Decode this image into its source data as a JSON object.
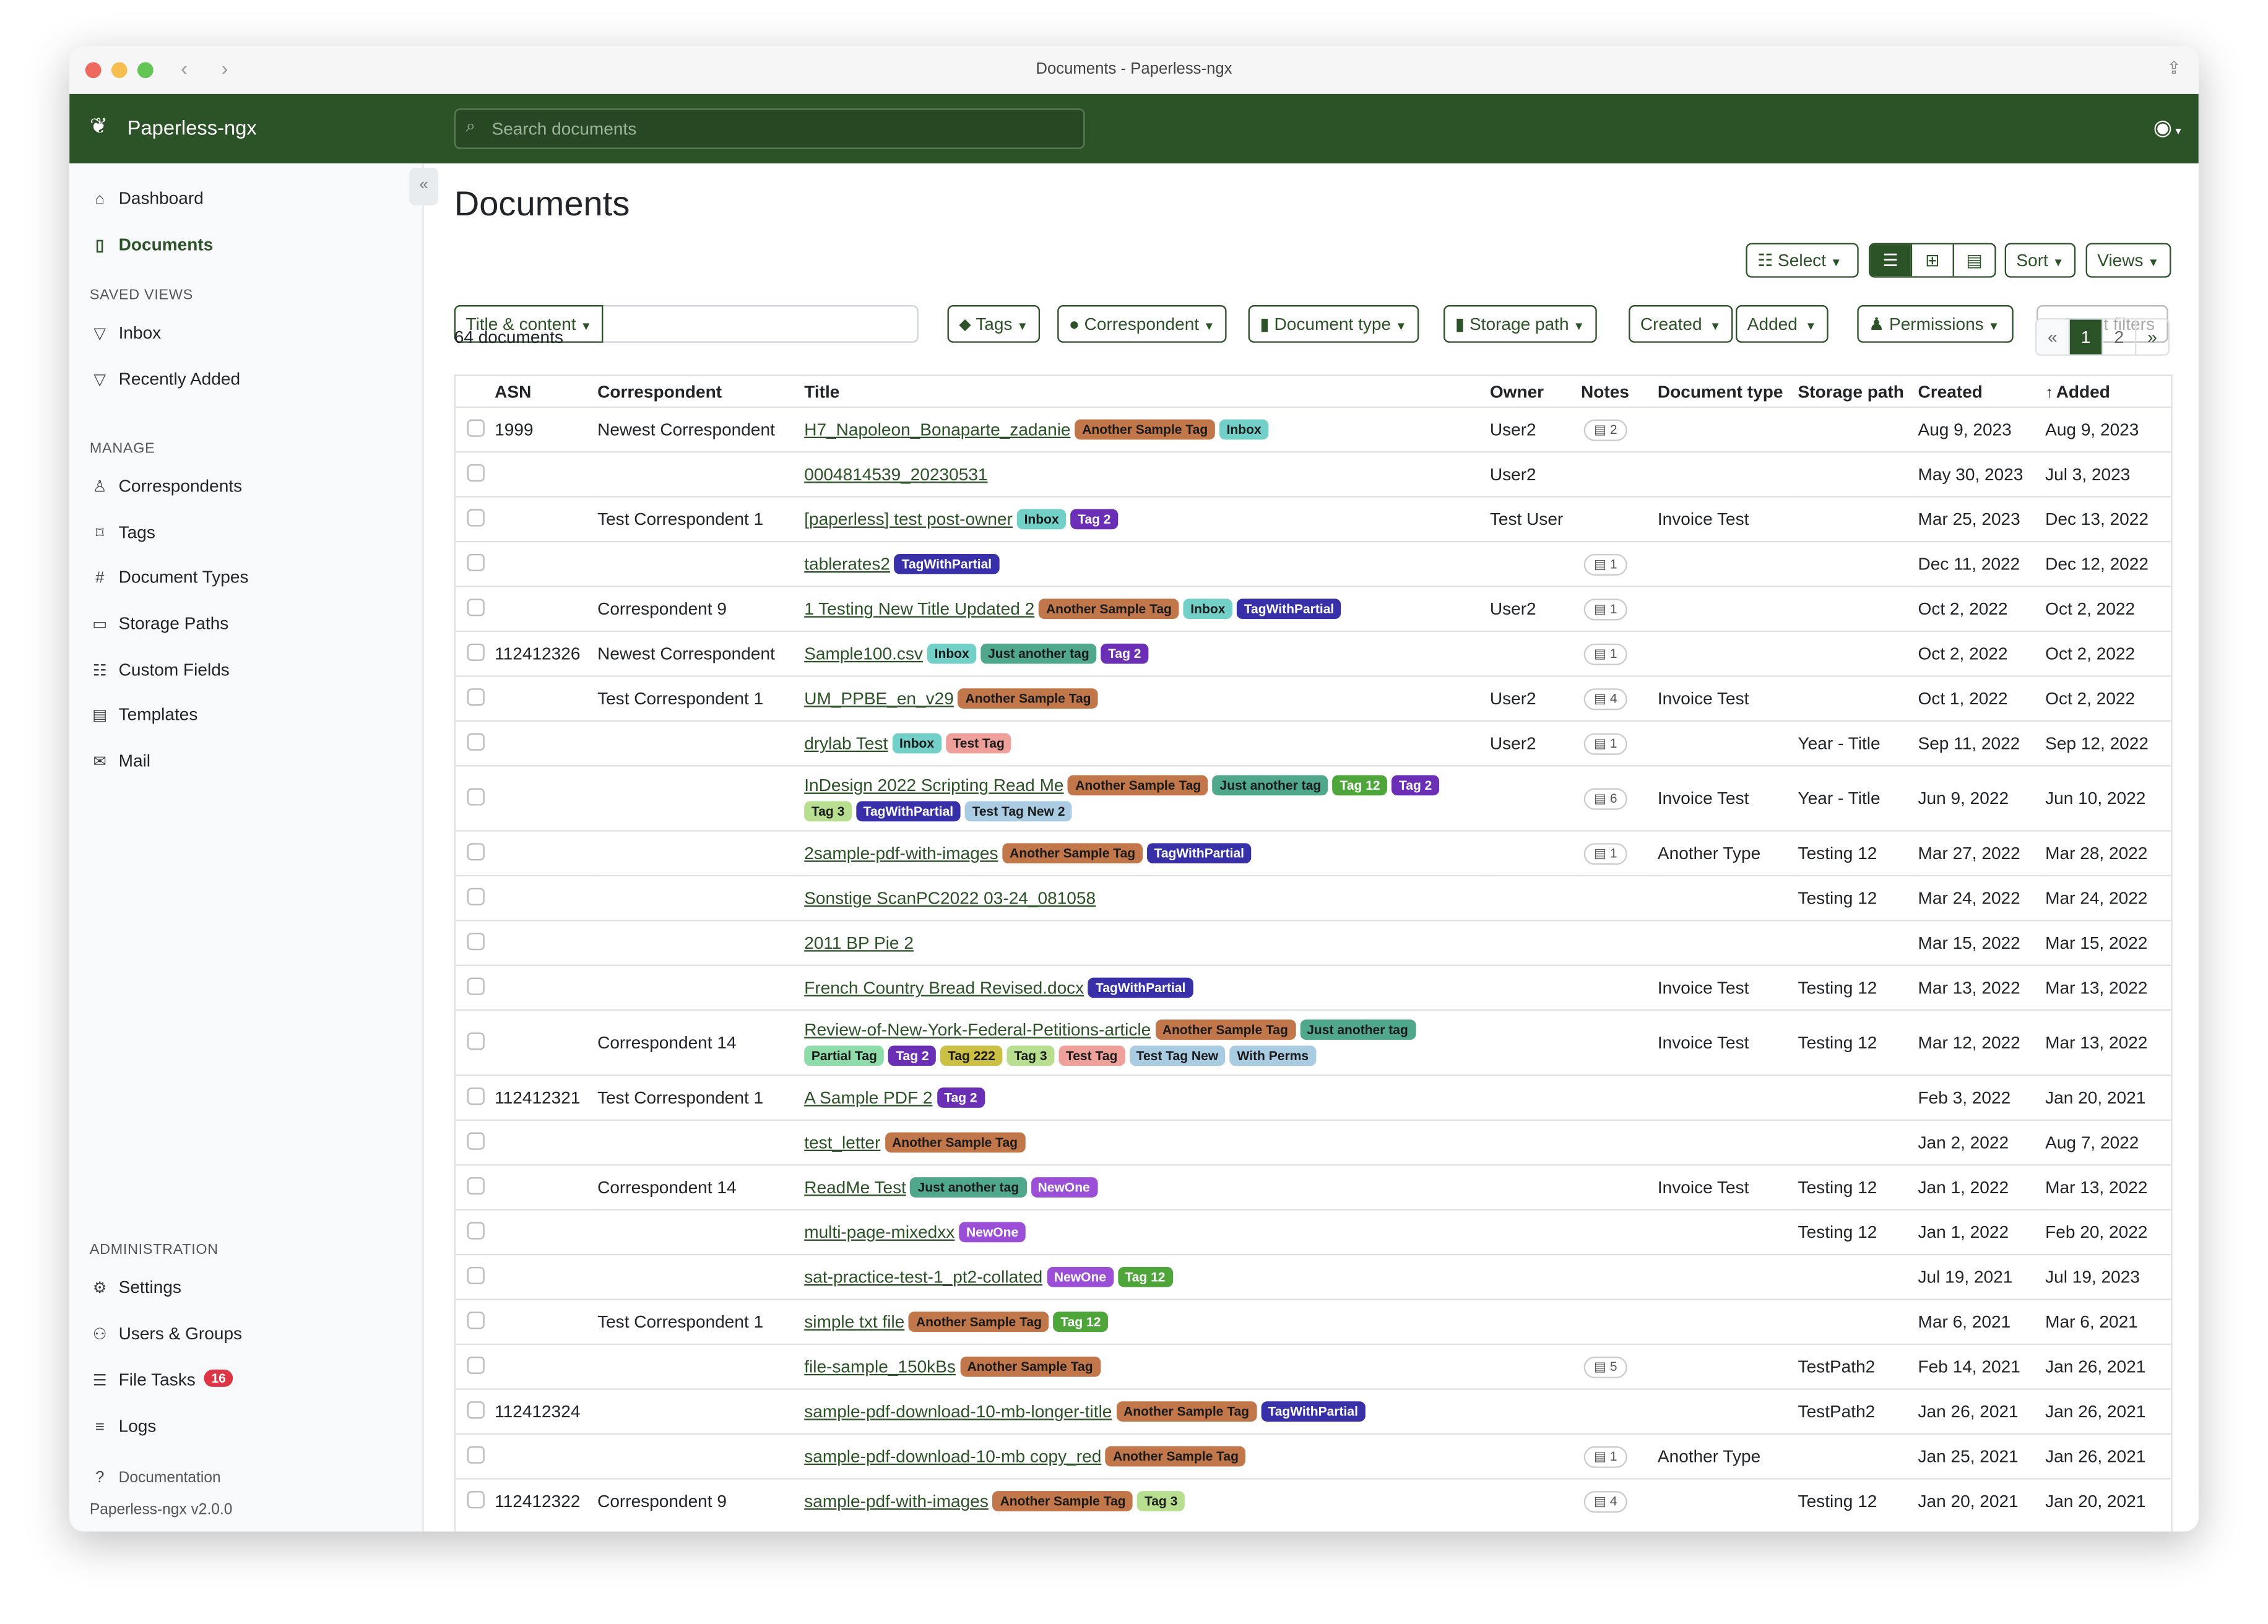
{
  "window": {
    "title": "Documents - Paperless-ngx"
  },
  "topbar": {
    "brand": "Paperless-ngx",
    "search_placeholder": "Search documents"
  },
  "sidebar": {
    "main": [
      {
        "label": "Dashboard",
        "icon": "house-icon"
      },
      {
        "label": "Documents",
        "icon": "file-icon",
        "active": true
      }
    ],
    "saved_views_heading": "SAVED VIEWS",
    "saved_views": [
      {
        "label": "Inbox"
      },
      {
        "label": "Recently Added"
      }
    ],
    "manage_heading": "MANAGE",
    "manage": [
      {
        "label": "Correspondents"
      },
      {
        "label": "Tags"
      },
      {
        "label": "Document Types"
      },
      {
        "label": "Storage Paths"
      },
      {
        "label": "Custom Fields"
      },
      {
        "label": "Templates"
      },
      {
        "label": "Mail"
      }
    ],
    "admin_heading": "ADMINISTRATION",
    "admin": [
      {
        "label": "Settings"
      },
      {
        "label": "Users & Groups"
      },
      {
        "label": "File Tasks",
        "badge": "16"
      },
      {
        "label": "Logs"
      }
    ],
    "documentation": "Documentation",
    "version": "Paperless-ngx v2.0.0"
  },
  "page": {
    "title": "Documents",
    "select": "Select",
    "sort": "Sort",
    "views": "Views",
    "doc_count": "64 documents"
  },
  "filters": {
    "title_content": "Title & content",
    "tags": "Tags",
    "correspondent": "Correspondent",
    "document_type": "Document type",
    "storage_path": "Storage path",
    "created": "Created",
    "added": "Added",
    "permissions": "Permissions",
    "reset": "× Reset filters"
  },
  "pagination": {
    "prev": "«",
    "pages": [
      "1",
      "2"
    ],
    "current": "1",
    "next": "»"
  },
  "columns": {
    "asn": "ASN",
    "correspondent": "Correspondent",
    "title": "Title",
    "owner": "Owner",
    "notes": "Notes",
    "document_type": "Document type",
    "storage_path": "Storage path",
    "created": "Created",
    "added": "Added",
    "sort_indicator": "↑"
  },
  "tag_colors": {
    "Another Sample Tag": {
      "bg": "#c2774a",
      "fg": "#1a1a1a"
    },
    "Inbox": {
      "bg": "#73d0c8",
      "fg": "#1a1a1a"
    },
    "Tag 2": {
      "bg": "#6a2fb5",
      "fg": "#ffffff"
    },
    "TagWithPartial": {
      "bg": "#3730a8",
      "fg": "#ffffff"
    },
    "Just another tag": {
      "bg": "#4fa88c",
      "fg": "#1a1a1a"
    },
    "Test Tag": {
      "bg": "#f0a09a",
      "fg": "#1a1a1a"
    },
    "Tag 12": {
      "bg": "#4ea63a",
      "fg": "#ffffff"
    },
    "Tag 3": {
      "bg": "#b7df8f",
      "fg": "#1a1a1a"
    },
    "Test Tag New 2": {
      "bg": "#a9cce3",
      "fg": "#1a1a1a"
    },
    "Partial Tag": {
      "bg": "#8edcaa",
      "fg": "#1a1a1a"
    },
    "Tag 222": {
      "bg": "#cbbf44",
      "fg": "#1a1a1a"
    },
    "Test Tag New": {
      "bg": "#a9cce3",
      "fg": "#1a1a1a"
    },
    "With Perms": {
      "bg": "#a9cce3",
      "fg": "#1a1a1a"
    },
    "NewOne": {
      "bg": "#9b4fd6",
      "fg": "#ffffff"
    }
  },
  "rows": [
    {
      "asn": "1999",
      "correspondent": "Newest Correspondent",
      "title": "H7_Napoleon_Bonaparte_zadanie",
      "tags": [
        "Another Sample Tag",
        "Inbox"
      ],
      "owner": "User2",
      "notes": "2",
      "document_type": "",
      "storage_path": "",
      "created": "Aug 9, 2023",
      "added": "Aug 9, 2023"
    },
    {
      "asn": "",
      "correspondent": "",
      "title": "0004814539_20230531",
      "tags": [],
      "owner": "User2",
      "notes": "",
      "document_type": "",
      "storage_path": "",
      "created": "May 30, 2023",
      "added": "Jul 3, 2023"
    },
    {
      "asn": "",
      "correspondent": "Test Correspondent 1",
      "title": "[paperless] test post-owner",
      "tags": [
        "Inbox",
        "Tag 2"
      ],
      "owner": "Test User",
      "notes": "",
      "document_type": "Invoice Test",
      "storage_path": "",
      "created": "Mar 25, 2023",
      "added": "Dec 13, 2022"
    },
    {
      "asn": "",
      "correspondent": "",
      "title": "tablerates2",
      "tags": [
        "TagWithPartial"
      ],
      "owner": "",
      "notes": "1",
      "document_type": "",
      "storage_path": "",
      "created": "Dec 11, 2022",
      "added": "Dec 12, 2022"
    },
    {
      "asn": "",
      "correspondent": "Correspondent 9",
      "title": "1 Testing New Title Updated 2",
      "tags": [
        "Another Sample Tag",
        "Inbox",
        "TagWithPartial"
      ],
      "owner": "User2",
      "notes": "1",
      "document_type": "",
      "storage_path": "",
      "created": "Oct 2, 2022",
      "added": "Oct 2, 2022"
    },
    {
      "asn": "112412326",
      "correspondent": "Newest Correspondent",
      "title": "Sample100.csv",
      "tags": [
        "Inbox",
        "Just another tag",
        "Tag 2"
      ],
      "owner": "",
      "notes": "1",
      "document_type": "",
      "storage_path": "",
      "created": "Oct 2, 2022",
      "added": "Oct 2, 2022"
    },
    {
      "asn": "",
      "correspondent": "Test Correspondent 1",
      "title": "UM_PPBE_en_v29",
      "tags": [
        "Another Sample Tag"
      ],
      "owner": "User2",
      "notes": "4",
      "document_type": "Invoice Test",
      "storage_path": "",
      "created": "Oct 1, 2022",
      "added": "Oct 2, 2022"
    },
    {
      "asn": "",
      "correspondent": "",
      "title": "drylab Test",
      "tags": [
        "Inbox",
        "Test Tag"
      ],
      "owner": "User2",
      "notes": "1",
      "document_type": "",
      "storage_path": "Year - Title",
      "created": "Sep 11, 2022",
      "added": "Sep 12, 2022"
    },
    {
      "asn": "",
      "correspondent": "",
      "title": "InDesign 2022 Scripting Read Me",
      "tags": [
        "Another Sample Tag",
        "Just another tag",
        "Tag 12",
        "Tag 2",
        "Tag 3",
        "TagWithPartial",
        "Test Tag New 2"
      ],
      "owner": "",
      "notes": "6",
      "document_type": "Invoice Test",
      "storage_path": "Year - Title",
      "created": "Jun 9, 2022",
      "added": "Jun 10, 2022"
    },
    {
      "asn": "",
      "correspondent": "",
      "title": "2sample-pdf-with-images",
      "tags": [
        "Another Sample Tag",
        "TagWithPartial"
      ],
      "owner": "",
      "notes": "1",
      "document_type": "Another Type",
      "storage_path": "Testing 12",
      "created": "Mar 27, 2022",
      "added": "Mar 28, 2022"
    },
    {
      "asn": "",
      "correspondent": "",
      "title": "Sonstige ScanPC2022 03-24_081058",
      "tags": [],
      "owner": "",
      "notes": "",
      "document_type": "",
      "storage_path": "Testing 12",
      "created": "Mar 24, 2022",
      "added": "Mar 24, 2022"
    },
    {
      "asn": "",
      "correspondent": "",
      "title": "2011 BP Pie 2",
      "tags": [],
      "owner": "",
      "notes": "",
      "document_type": "",
      "storage_path": "",
      "created": "Mar 15, 2022",
      "added": "Mar 15, 2022"
    },
    {
      "asn": "",
      "correspondent": "",
      "title": "French Country Bread Revised.docx",
      "tags": [
        "TagWithPartial"
      ],
      "owner": "",
      "notes": "",
      "document_type": "Invoice Test",
      "storage_path": "Testing 12",
      "created": "Mar 13, 2022",
      "added": "Mar 13, 2022"
    },
    {
      "asn": "",
      "correspondent": "Correspondent 14",
      "title": "Review-of-New-York-Federal-Petitions-article",
      "tags": [
        "Another Sample Tag",
        "Just another tag",
        "Partial Tag",
        "Tag 2",
        "Tag 222",
        "Tag 3",
        "Test Tag",
        "Test Tag New",
        "With Perms"
      ],
      "owner": "",
      "notes": "",
      "document_type": "Invoice Test",
      "storage_path": "Testing 12",
      "created": "Mar 12, 2022",
      "added": "Mar 13, 2022"
    },
    {
      "asn": "112412321",
      "correspondent": "Test Correspondent 1",
      "title": "A Sample PDF 2",
      "tags": [
        "Tag 2"
      ],
      "owner": "",
      "notes": "",
      "document_type": "",
      "storage_path": "",
      "created": "Feb 3, 2022",
      "added": "Jan 20, 2021"
    },
    {
      "asn": "",
      "correspondent": "",
      "title": "test_letter",
      "tags": [
        "Another Sample Tag"
      ],
      "owner": "",
      "notes": "",
      "document_type": "",
      "storage_path": "",
      "created": "Jan 2, 2022",
      "added": "Aug 7, 2022"
    },
    {
      "asn": "",
      "correspondent": "Correspondent 14",
      "title": "ReadMe Test",
      "tags": [
        "Just another tag",
        "NewOne"
      ],
      "owner": "",
      "notes": "",
      "document_type": "Invoice Test",
      "storage_path": "Testing 12",
      "created": "Jan 1, 2022",
      "added": "Mar 13, 2022"
    },
    {
      "asn": "",
      "correspondent": "",
      "title": "multi-page-mixedxx",
      "tags": [
        "NewOne"
      ],
      "owner": "",
      "notes": "",
      "document_type": "",
      "storage_path": "Testing 12",
      "created": "Jan 1, 2022",
      "added": "Feb 20, 2022"
    },
    {
      "asn": "",
      "correspondent": "",
      "title": "sat-practice-test-1_pt2-collated",
      "tags": [
        "NewOne",
        "Tag 12"
      ],
      "owner": "",
      "notes": "",
      "document_type": "",
      "storage_path": "",
      "created": "Jul 19, 2021",
      "added": "Jul 19, 2023"
    },
    {
      "asn": "",
      "correspondent": "Test Correspondent 1",
      "title": "simple txt file",
      "tags": [
        "Another Sample Tag",
        "Tag 12"
      ],
      "owner": "",
      "notes": "",
      "document_type": "",
      "storage_path": "",
      "created": "Mar 6, 2021",
      "added": "Mar 6, 2021"
    },
    {
      "asn": "",
      "correspondent": "",
      "title": "file-sample_150kBs",
      "tags": [
        "Another Sample Tag"
      ],
      "owner": "",
      "notes": "5",
      "document_type": "",
      "storage_path": "TestPath2",
      "created": "Feb 14, 2021",
      "added": "Jan 26, 2021"
    },
    {
      "asn": "112412324",
      "correspondent": "",
      "title": "sample-pdf-download-10-mb-longer-title",
      "tags": [
        "Another Sample Tag",
        "TagWithPartial"
      ],
      "owner": "",
      "notes": "",
      "document_type": "",
      "storage_path": "TestPath2",
      "created": "Jan 26, 2021",
      "added": "Jan 26, 2021"
    },
    {
      "asn": "",
      "correspondent": "",
      "title": "sample-pdf-download-10-mb copy_red",
      "tags": [
        "Another Sample Tag"
      ],
      "owner": "",
      "notes": "1",
      "document_type": "Another Type",
      "storage_path": "",
      "created": "Jan 25, 2021",
      "added": "Jan 26, 2021"
    },
    {
      "asn": "112412322",
      "correspondent": "Correspondent 9",
      "title": "sample-pdf-with-images",
      "tags": [
        "Another Sample Tag",
        "Tag 3"
      ],
      "owner": "",
      "notes": "4",
      "document_type": "",
      "storage_path": "Testing 12",
      "created": "Jan 20, 2021",
      "added": "Jan 20, 2021"
    }
  ]
}
